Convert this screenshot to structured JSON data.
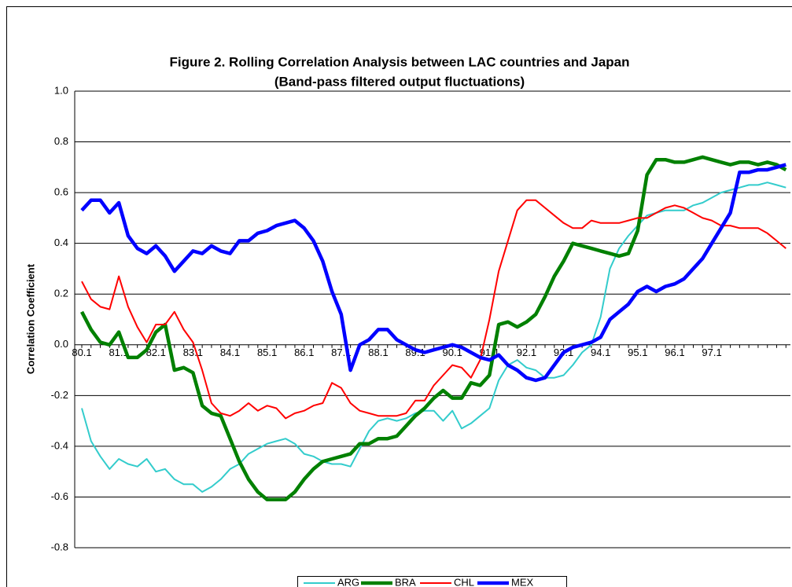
{
  "chart_data": {
    "type": "line",
    "title": "Figure 2. Rolling Correlation Analysis between LAC countries and Japan",
    "subtitle": "(Band-pass filtered output fluctuations)",
    "y_label": "Correlation Coefficient",
    "categories": [
      "80.1",
      null,
      null,
      null,
      "81.1",
      null,
      null,
      null,
      "82.1",
      null,
      null,
      null,
      "83.1",
      null,
      null,
      null,
      "84.1",
      null,
      null,
      null,
      "85.1",
      null,
      null,
      null,
      "86.1",
      null,
      null,
      null,
      "87.1",
      null,
      null,
      null,
      "88.1",
      null,
      null,
      null,
      "89.1",
      null,
      null,
      null,
      "90.1",
      null,
      null,
      null,
      "91.1",
      null,
      null,
      null,
      "92.1",
      null,
      null,
      null,
      "93.1",
      null,
      null,
      null,
      "94.1",
      null,
      null,
      null,
      "95.1",
      null,
      null,
      null,
      "96.1",
      null,
      null,
      null,
      "97.1",
      null,
      null,
      null,
      null,
      null,
      null,
      null,
      null
    ],
    "ylim": [
      -0.8,
      1.0
    ],
    "yticks": [
      {
        "value": -0.8,
        "label": "-0.8"
      },
      -0.6,
      -0.4,
      -0.2,
      {
        "value": 0,
        "label": "0.0"
      },
      0.2,
      0.4,
      0.6,
      0.8,
      {
        "value": 1.0,
        "label": "1.0"
      }
    ],
    "grid": true,
    "legend": "bottom",
    "series": [
      {
        "name": "ARG",
        "color": "#33cccc",
        "values": [
          -0.25,
          -0.38,
          -0.44,
          -0.49,
          -0.45,
          -0.47,
          -0.48,
          -0.45,
          -0.5,
          -0.49,
          -0.53,
          -0.55,
          -0.55,
          -0.58,
          -0.56,
          -0.53,
          -0.49,
          -0.47,
          -0.43,
          -0.41,
          -0.39,
          -0.38,
          -0.37,
          -0.39,
          -0.43,
          -0.44,
          -0.46,
          -0.47,
          -0.47,
          -0.48,
          -0.41,
          -0.34,
          -0.3,
          -0.29,
          -0.3,
          -0.29,
          -0.27,
          -0.26,
          -0.26,
          -0.3,
          -0.26,
          -0.33,
          -0.31,
          -0.28,
          -0.25,
          -0.14,
          -0.08,
          -0.06,
          -0.09,
          -0.1,
          -0.13,
          -0.13,
          -0.12,
          -0.08,
          -0.03,
          0.0,
          0.11,
          0.3,
          0.38,
          0.43,
          0.47,
          0.51,
          0.52,
          0.53,
          0.53,
          0.53,
          0.55,
          0.56,
          0.58,
          0.6,
          0.61,
          0.62,
          0.63,
          0.63,
          0.64,
          0.63,
          0.62
        ]
      },
      {
        "name": "BRA",
        "color": "#008000",
        "values": [
          0.13,
          0.06,
          0.01,
          0.0,
          0.05,
          -0.05,
          -0.05,
          -0.02,
          0.05,
          0.08,
          -0.1,
          -0.09,
          -0.11,
          -0.24,
          -0.27,
          -0.28,
          -0.37,
          -0.46,
          -0.53,
          -0.58,
          -0.61,
          -0.61,
          -0.61,
          -0.58,
          -0.53,
          -0.49,
          -0.46,
          -0.45,
          -0.44,
          -0.43,
          -0.39,
          -0.39,
          -0.37,
          -0.37,
          -0.36,
          -0.32,
          -0.28,
          -0.25,
          -0.21,
          -0.18,
          -0.21,
          -0.21,
          -0.15,
          -0.16,
          -0.12,
          0.08,
          0.09,
          0.07,
          0.09,
          0.12,
          0.19,
          0.27,
          0.33,
          0.4,
          0.39,
          0.38,
          0.37,
          0.36,
          0.35,
          0.36,
          0.45,
          0.67,
          0.73,
          0.73,
          0.72,
          0.72,
          0.73,
          0.74,
          0.73,
          0.72,
          0.71,
          0.72,
          0.72,
          0.71,
          0.72,
          0.71,
          0.69
        ]
      },
      {
        "name": "CHL",
        "color": "#ff0000",
        "values": [
          0.25,
          0.18,
          0.15,
          0.14,
          0.27,
          0.15,
          0.07,
          0.01,
          0.08,
          0.08,
          0.13,
          0.06,
          0.01,
          -0.1,
          -0.23,
          -0.27,
          -0.28,
          -0.26,
          -0.23,
          -0.26,
          -0.24,
          -0.25,
          -0.29,
          -0.27,
          -0.26,
          -0.24,
          -0.23,
          -0.15,
          -0.17,
          -0.23,
          -0.26,
          -0.27,
          -0.28,
          -0.28,
          -0.28,
          -0.27,
          -0.22,
          -0.22,
          -0.16,
          -0.12,
          -0.08,
          -0.09,
          -0.13,
          -0.06,
          0.1,
          0.29,
          0.41,
          0.53,
          0.57,
          0.57,
          0.54,
          0.51,
          0.48,
          0.46,
          0.46,
          0.49,
          0.48,
          0.48,
          0.48,
          0.49,
          0.5,
          0.5,
          0.52,
          0.54,
          0.55,
          0.54,
          0.52,
          0.5,
          0.49,
          0.47,
          0.47,
          0.46,
          0.46,
          0.46,
          0.44,
          0.41,
          0.38
        ]
      },
      {
        "name": "MEX",
        "color": "#0000ff",
        "values": [
          0.53,
          0.57,
          0.57,
          0.52,
          0.56,
          0.43,
          0.38,
          0.36,
          0.39,
          0.35,
          0.29,
          0.33,
          0.37,
          0.36,
          0.39,
          0.37,
          0.36,
          0.41,
          0.41,
          0.44,
          0.45,
          0.47,
          0.48,
          0.49,
          0.46,
          0.41,
          0.33,
          0.21,
          0.12,
          -0.1,
          0.0,
          0.02,
          0.06,
          0.06,
          0.02,
          0.0,
          -0.02,
          -0.03,
          -0.02,
          -0.01,
          0.0,
          -0.01,
          -0.03,
          -0.05,
          -0.06,
          -0.04,
          -0.08,
          -0.1,
          -0.13,
          -0.14,
          -0.13,
          -0.08,
          -0.03,
          -0.01,
          0.0,
          0.01,
          0.03,
          0.1,
          0.13,
          0.16,
          0.21,
          0.23,
          0.21,
          0.23,
          0.24,
          0.26,
          0.3,
          0.34,
          0.4,
          0.46,
          0.52,
          0.68,
          0.68,
          0.69,
          0.69,
          0.7,
          0.71
        ]
      }
    ]
  }
}
